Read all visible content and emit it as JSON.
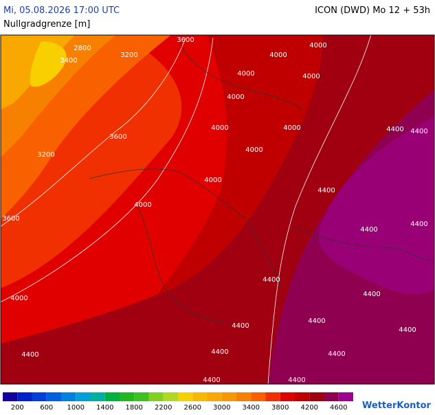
{
  "header": {
    "valid_time": "Mi, 05.08.2026 17:00 UTC",
    "model": "ICON (DWD) Mo 12 + 53h",
    "parameter": "Nullgradgrenze [m]"
  },
  "contour_labels": [
    "3600",
    "2800",
    "3200",
    "3400",
    "4000",
    "4000",
    "4000",
    "4000",
    "4000",
    "3600",
    "4000",
    "4000",
    "4400",
    "4400",
    "3200",
    "4000",
    "4000",
    "4400",
    "4000",
    "3600",
    "4400",
    "4400",
    "4400",
    "4400",
    "4000",
    "4400",
    "4400",
    "4400",
    "4400",
    "4400",
    "4400",
    "4400",
    "4400"
  ],
  "colorbar": {
    "colors": [
      "#1400a0",
      "#0020c8",
      "#0040d8",
      "#0060e0",
      "#0080e0",
      "#00a0d8",
      "#00b0a0",
      "#00b040",
      "#20b820",
      "#40c020",
      "#80d020",
      "#b0d820",
      "#f8d000",
      "#f8b800",
      "#f8a800",
      "#f89800",
      "#f88000",
      "#f86000",
      "#f03000",
      "#e00000",
      "#c00000",
      "#a00010",
      "#900050",
      "#a00090"
    ],
    "labels": [
      200,
      600,
      1000,
      1400,
      1800,
      2200,
      2600,
      3000,
      3400,
      3800,
      4200,
      4600
    ]
  },
  "logo": "WetterKontor"
}
